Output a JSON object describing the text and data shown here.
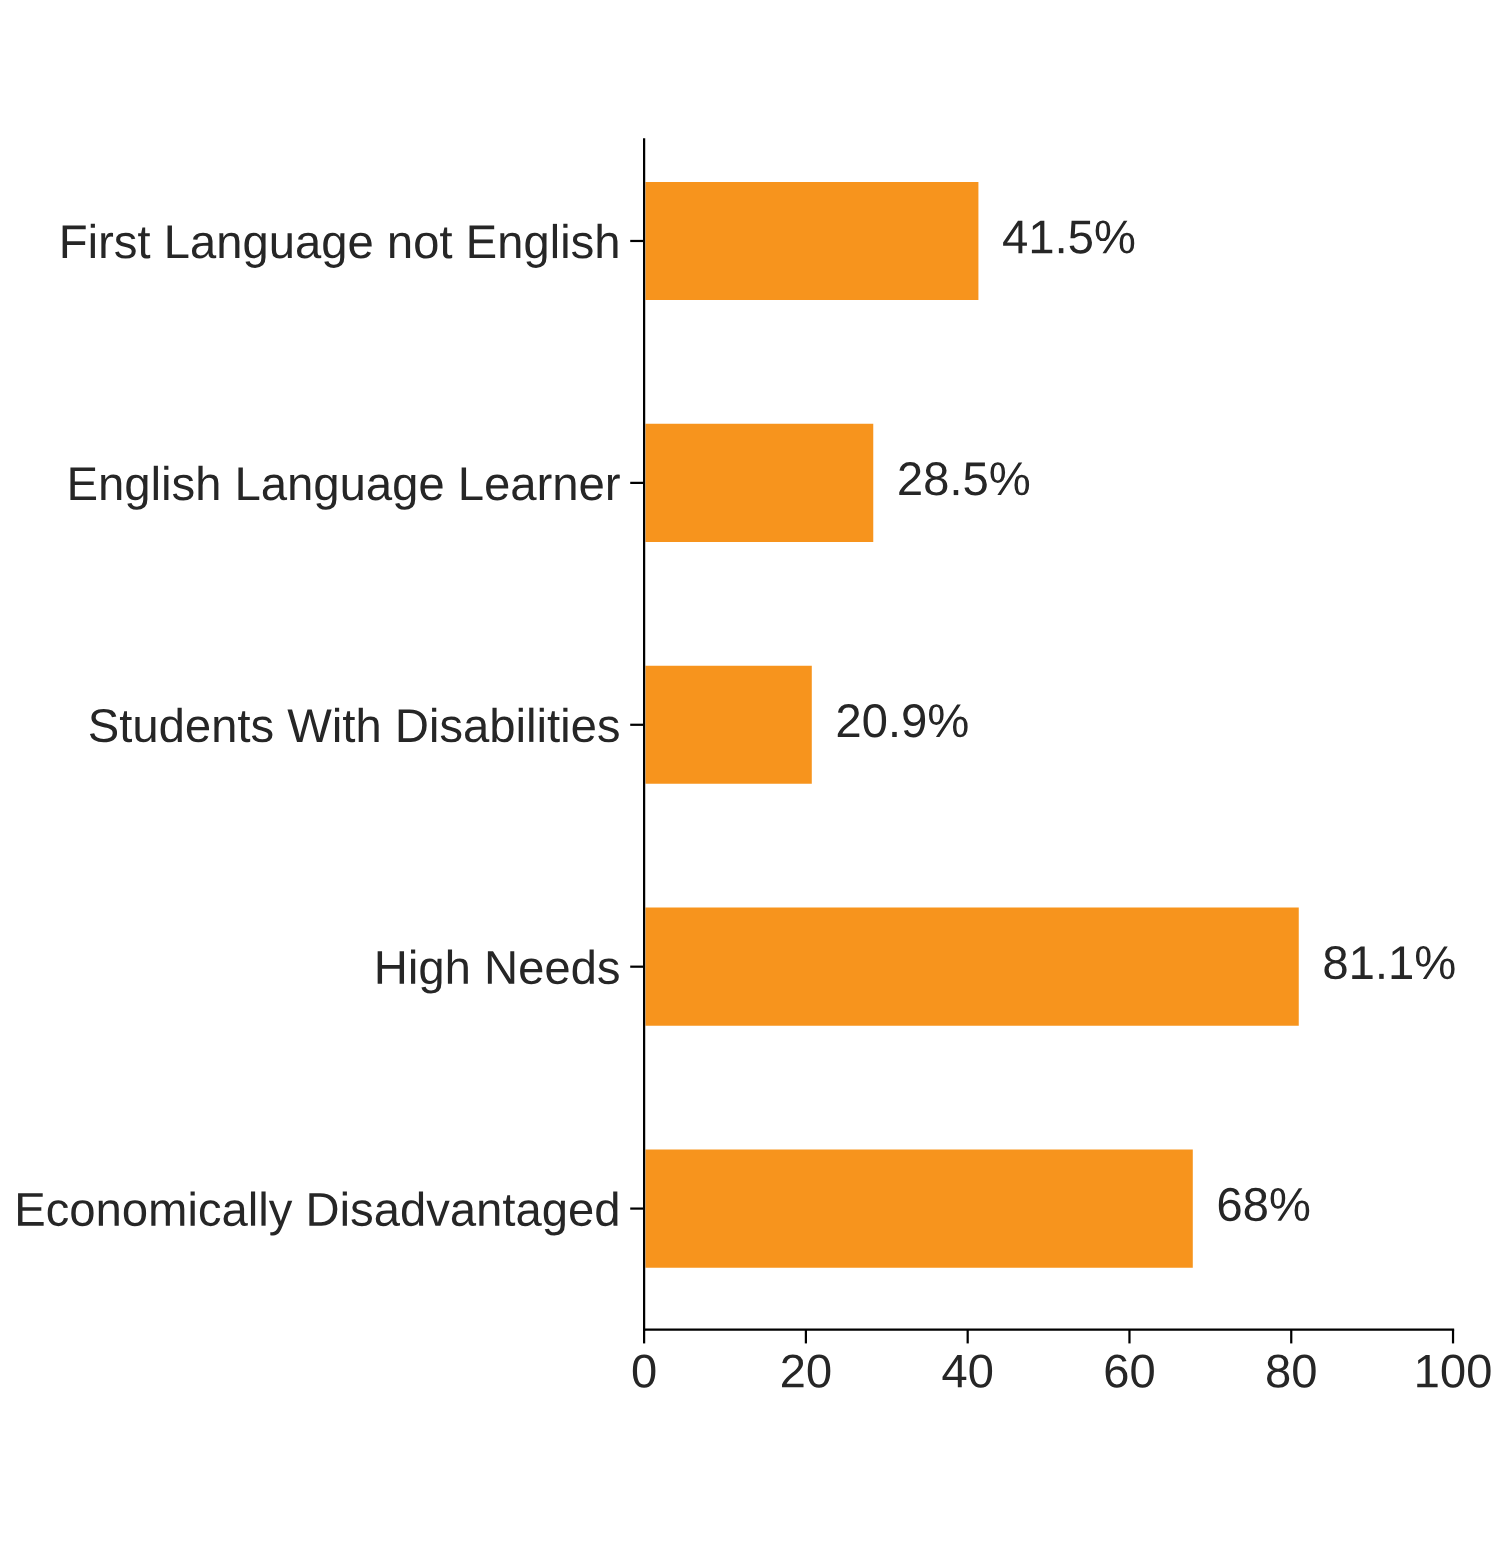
{
  "chart_data": {
    "type": "bar",
    "orientation": "horizontal",
    "categories": [
      "First Language not English",
      "English Language Learner",
      "Students With Disabilities",
      "High Needs",
      "Economically Disadvantaged"
    ],
    "values": [
      41.5,
      28.5,
      20.9,
      81.1,
      68
    ],
    "value_labels": [
      "41.5%",
      "28.5%",
      "20.9%",
      "81.1%",
      "68%"
    ],
    "color": "#f7941d",
    "xlim": [
      0,
      100
    ],
    "xticks": [
      0,
      20,
      40,
      60,
      80,
      100
    ],
    "grid": false
  }
}
